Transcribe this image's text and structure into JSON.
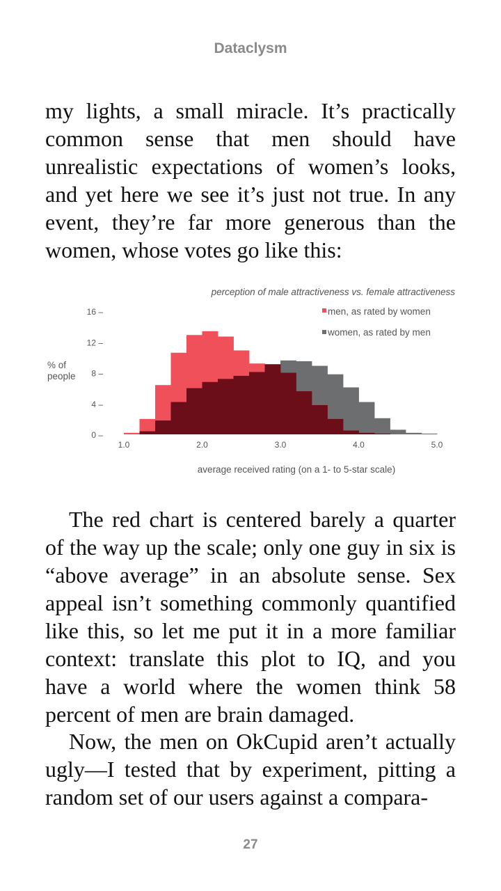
{
  "header": {
    "book_title": "Dataclysm"
  },
  "text": {
    "para1": "my lights, a small miracle. It’s practically common sense that men should have unrealistic expectations of women’s looks, and yet here we see it’s just not true. In any event, they’re far more generous than the women, whose votes go like this:",
    "para2": "The red chart is centered barely a quarter of the way up the scale; only one guy in six is “above average” in an absolute sense. Sex appeal isn’t something commonly quantified like this, so let me put it in a more familiar context: translate this plot to IQ, and you have a world where the women think 58 percent of men are brain damaged.",
    "para3": "Now, the men on OkCupid aren’t actually ugly—I tested that by experiment, pitting a random set of our users against a compara-"
  },
  "footer": {
    "page_number": "27"
  },
  "chart_data": {
    "type": "bar",
    "title": "perception of male attractiveness vs. female attractiveness",
    "xlabel": "average received rating (on a 1- to 5-star scale)",
    "ylabel": "% of people",
    "ylabel_lines": [
      "% of",
      "people"
    ],
    "x_ticks": [
      "1.0",
      "2.0",
      "3.0",
      "4.0",
      "5.0"
    ],
    "y_ticks": [
      "0",
      "4",
      "8",
      "12",
      "16"
    ],
    "xlim": [
      1.0,
      5.0
    ],
    "ylim": [
      0,
      16
    ],
    "bin_width": 0.2,
    "bin_starts": [
      1.0,
      1.2,
      1.4,
      1.6,
      1.8,
      2.0,
      2.2,
      2.4,
      2.6,
      2.8,
      3.0,
      3.2,
      3.4,
      3.6,
      3.8,
      4.0,
      4.2,
      4.4,
      4.6,
      4.8
    ],
    "legend_position": "top-right",
    "series": [
      {
        "name": "women, as rated by men",
        "color": "#6d6e70",
        "values": [
          0.0,
          0.4,
          1.8,
          4.2,
          6.0,
          6.8,
          7.2,
          7.6,
          8.1,
          9.1,
          9.6,
          9.5,
          8.9,
          7.8,
          6.1,
          4.2,
          2.1,
          0.6,
          0.2,
          0.1
        ]
      },
      {
        "name": "men, as rated by women",
        "color": "#f0505a",
        "values": [
          0.2,
          2.0,
          6.4,
          10.6,
          12.9,
          13.4,
          12.7,
          10.9,
          9.2,
          9.1,
          8.0,
          5.6,
          3.8,
          2.0,
          0.5,
          0.2,
          0.1,
          0.0,
          0.0,
          0.0
        ]
      }
    ],
    "overlap_color": "#6b0e19"
  }
}
